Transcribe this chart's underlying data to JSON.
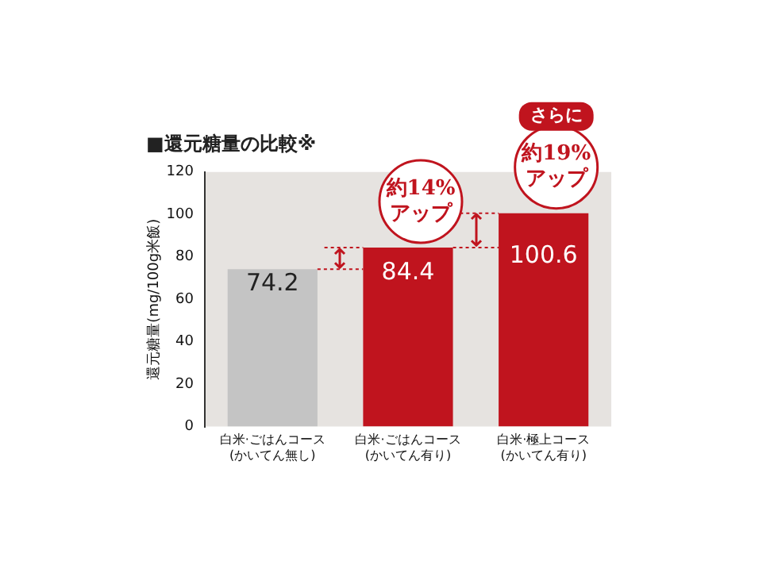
{
  "chart_data": {
    "type": "bar",
    "title": "■還元糖量の比較※",
    "ylabel": "還元糖量(mg/100g米飯)",
    "categories": [
      "白米·ごはんコース\n(かいてん無し)",
      "白米·ごはんコース\n(かいてん有り)",
      "白米·極上コース\n(かいてん有り)"
    ],
    "values": [
      74.2,
      84.4,
      100.6
    ],
    "colors": [
      "#c4c4c4",
      "#c0141e",
      "#c0141e"
    ],
    "ylim": [
      0,
      120
    ],
    "yticks": [
      0,
      20,
      40,
      60,
      80,
      100,
      120
    ],
    "grid": false,
    "data_labels": true,
    "annotations": [
      "約14%\nアップ",
      "約19%\nアップ",
      "さらに"
    ]
  }
}
